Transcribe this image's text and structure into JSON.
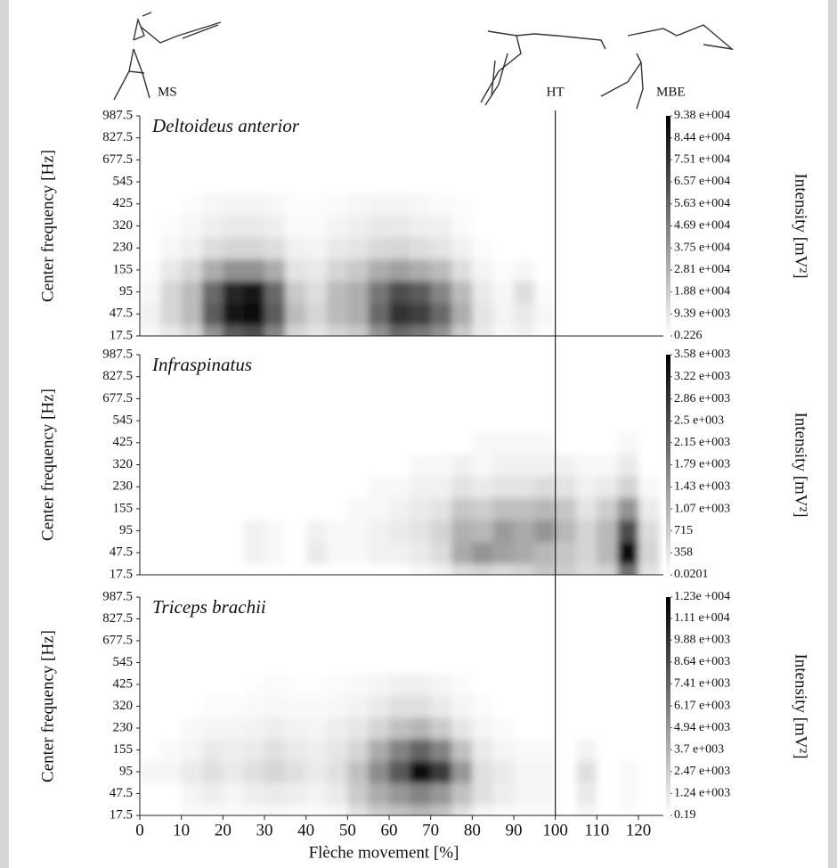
{
  "events": [
    {
      "label": "MS",
      "x": 0
    },
    {
      "label": "HT",
      "x": 100,
      "line": true
    },
    {
      "label": "MBE",
      "x": 120
    }
  ],
  "chart_data": [
    {
      "type": "heatmap",
      "title": "Deltoideus anterior",
      "ylabel": "Center frequency [Hz]",
      "colorbar_label": "Intensity [mV²]",
      "x": [
        2.5,
        7.5,
        12.5,
        17.5,
        22.5,
        27.5,
        32.5,
        37.5,
        42.5,
        47.5,
        52.5,
        57.5,
        62.5,
        67.5,
        72.5,
        77.5,
        82.5,
        87.5,
        92.5,
        97.5,
        102.5,
        107.5,
        112.5,
        117.5,
        122.5
      ],
      "y": [
        17.5,
        47.5,
        95,
        155,
        230,
        320,
        425,
        545,
        677.5,
        827.5,
        987.5
      ],
      "z": [
        [
          3000,
          8000,
          15000,
          40000,
          60000,
          65000,
          45000,
          15000,
          10000,
          15000,
          20000,
          40000,
          55000,
          50000,
          40000,
          20000,
          8000,
          3000,
          5000,
          2000,
          0,
          0,
          0,
          0,
          0
        ],
        [
          5000,
          15000,
          25000,
          60000,
          85000,
          90000,
          60000,
          25000,
          15000,
          25000,
          30000,
          55000,
          75000,
          70000,
          55000,
          30000,
          10000,
          4000,
          8000,
          3000,
          0,
          0,
          0,
          0,
          0
        ],
        [
          3000,
          15000,
          25000,
          55000,
          80000,
          85000,
          55000,
          20000,
          12000,
          25000,
          30000,
          50000,
          65000,
          60000,
          45000,
          25000,
          8000,
          3000,
          12000,
          2000,
          0,
          0,
          0,
          0,
          0
        ],
        [
          1000,
          8000,
          15000,
          30000,
          40000,
          40000,
          30000,
          10000,
          8000,
          15000,
          20000,
          30000,
          35000,
          30000,
          25000,
          12000,
          4000,
          1000,
          3000,
          0,
          0,
          0,
          0,
          0,
          0
        ],
        [
          0,
          3000,
          6000,
          12000,
          15000,
          15000,
          12000,
          5000,
          4000,
          8000,
          10000,
          14000,
          15000,
          12000,
          10000,
          5000,
          1000,
          0,
          0,
          0,
          0,
          0,
          0,
          0,
          0
        ],
        [
          0,
          1000,
          3000,
          6000,
          8000,
          8000,
          6000,
          2000,
          2000,
          4000,
          6000,
          8000,
          8000,
          6000,
          5000,
          2000,
          0,
          0,
          0,
          0,
          0,
          0,
          0,
          0,
          0
        ],
        [
          0,
          0,
          1000,
          3000,
          4000,
          4000,
          3000,
          1000,
          1000,
          2000,
          3000,
          4000,
          4000,
          3000,
          2000,
          1000,
          0,
          0,
          0,
          0,
          0,
          0,
          0,
          0,
          0
        ],
        [
          0,
          0,
          0,
          0,
          0,
          0,
          0,
          0,
          0,
          0,
          0,
          0,
          0,
          0,
          0,
          0,
          0,
          0,
          0,
          0,
          0,
          0,
          0,
          0,
          0
        ],
        [
          0,
          0,
          0,
          0,
          0,
          0,
          0,
          0,
          0,
          0,
          0,
          0,
          0,
          0,
          0,
          0,
          0,
          0,
          0,
          0,
          0,
          0,
          0,
          0,
          0
        ],
        [
          0,
          0,
          0,
          0,
          0,
          0,
          0,
          0,
          0,
          0,
          0,
          0,
          0,
          0,
          0,
          0,
          0,
          0,
          0,
          0,
          0,
          0,
          0,
          0,
          0
        ],
        [
          0,
          0,
          0,
          0,
          0,
          0,
          0,
          0,
          0,
          0,
          0,
          0,
          0,
          0,
          0,
          0,
          0,
          0,
          0,
          0,
          0,
          0,
          0,
          0,
          0
        ]
      ],
      "xlim": [
        0,
        126
      ],
      "clim": [
        0.226,
        93800
      ],
      "cticks": [
        0.226,
        {
          "value": 9390,
          "label": "9.39 e+003"
        },
        {
          "value": 18800,
          "label": "1.88 e+004"
        },
        {
          "value": 28100,
          "label": "2.81 e+004"
        },
        {
          "value": 37500,
          "label": "3.75 e+004"
        },
        {
          "value": 46900,
          "label": "4.69 e+004"
        },
        {
          "value": 56300,
          "label": "5.63 e+004"
        },
        {
          "value": 65700,
          "label": "6.57 e+004"
        },
        {
          "value": 75100,
          "label": "7.51 e+004"
        },
        {
          "value": 84400,
          "label": "8.44 e+004"
        },
        {
          "value": 93800,
          "label": "9.38 e+004"
        }
      ]
    },
    {
      "type": "heatmap",
      "title": "Infraspinatus",
      "ylabel": "Center frequency [Hz]",
      "colorbar_label": "Intensity [mV²]",
      "x": [
        2.5,
        7.5,
        12.5,
        17.5,
        22.5,
        27.5,
        32.5,
        37.5,
        42.5,
        47.5,
        52.5,
        57.5,
        62.5,
        67.5,
        72.5,
        77.5,
        82.5,
        87.5,
        92.5,
        97.5,
        102.5,
        107.5,
        112.5,
        117.5,
        122.5
      ],
      "y": [
        17.5,
        47.5,
        95,
        155,
        230,
        320,
        425,
        545,
        677.5,
        827.5,
        987.5
      ],
      "z": [
        [
          0,
          0,
          0,
          0,
          0,
          0,
          0,
          0,
          0,
          0,
          0,
          0,
          0,
          100,
          200,
          500,
          600,
          500,
          600,
          800,
          700,
          500,
          600,
          2000,
          400
        ],
        [
          0,
          0,
          0,
          0,
          0,
          200,
          100,
          0,
          300,
          100,
          100,
          200,
          200,
          300,
          500,
          1200,
          1500,
          1300,
          1200,
          1000,
          800,
          600,
          1000,
          3400,
          600
        ],
        [
          0,
          0,
          0,
          0,
          0,
          200,
          100,
          0,
          200,
          100,
          100,
          200,
          300,
          400,
          600,
          1100,
          1000,
          1400,
          1200,
          1500,
          1000,
          600,
          1000,
          2500,
          500
        ],
        [
          0,
          0,
          0,
          0,
          0,
          0,
          0,
          0,
          0,
          0,
          100,
          100,
          200,
          300,
          400,
          800,
          700,
          900,
          900,
          1000,
          800,
          400,
          700,
          1500,
          300
        ],
        [
          0,
          0,
          0,
          0,
          0,
          0,
          0,
          0,
          0,
          0,
          0,
          100,
          100,
          200,
          200,
          400,
          300,
          400,
          400,
          500,
          400,
          200,
          300,
          600,
          100
        ],
        [
          0,
          0,
          0,
          0,
          0,
          0,
          0,
          0,
          0,
          0,
          0,
          0,
          0,
          100,
          100,
          200,
          100,
          200,
          200,
          200,
          200,
          100,
          100,
          300,
          0
        ],
        [
          0,
          0,
          0,
          0,
          0,
          0,
          0,
          0,
          0,
          0,
          0,
          0,
          0,
          0,
          0,
          0,
          100,
          100,
          100,
          100,
          0,
          0,
          0,
          100,
          0
        ],
        [
          0,
          0,
          0,
          0,
          0,
          0,
          0,
          0,
          0,
          0,
          0,
          0,
          0,
          0,
          0,
          0,
          0,
          0,
          0,
          0,
          0,
          0,
          0,
          0,
          0
        ],
        [
          0,
          0,
          0,
          0,
          0,
          0,
          0,
          0,
          0,
          0,
          0,
          0,
          0,
          0,
          0,
          0,
          0,
          0,
          0,
          0,
          0,
          0,
          0,
          0,
          0
        ],
        [
          0,
          0,
          0,
          0,
          0,
          0,
          0,
          0,
          0,
          0,
          0,
          0,
          0,
          0,
          0,
          0,
          0,
          0,
          0,
          0,
          0,
          0,
          0,
          0,
          0
        ],
        [
          0,
          0,
          0,
          0,
          0,
          0,
          0,
          0,
          0,
          0,
          0,
          0,
          0,
          0,
          0,
          0,
          0,
          0,
          0,
          0,
          0,
          0,
          0,
          0,
          0
        ]
      ],
      "xlim": [
        0,
        126
      ],
      "clim": [
        0.0201,
        3580
      ],
      "cticks": [
        0.0201,
        358,
        715,
        {
          "value": 1070,
          "label": "1.07 e+003"
        },
        {
          "value": 1430,
          "label": "1.43 e+003"
        },
        {
          "value": 1790,
          "label": "1.79 e+003"
        },
        {
          "value": 2150,
          "label": "2.15 e+003"
        },
        {
          "value": 2500,
          "label": "2.5 e+003"
        },
        {
          "value": 2860,
          "label": "2.86 e+003"
        },
        {
          "value": 3220,
          "label": "3.22 e+003"
        },
        {
          "value": 3580,
          "label": "3.58 e+003"
        }
      ]
    },
    {
      "type": "heatmap",
      "title": "Triceps brachii",
      "ylabel": "Center frequency [Hz]",
      "colorbar_label": "Intensity [mV²]",
      "xlabel": "Flèche movement [%]",
      "x": [
        2.5,
        7.5,
        12.5,
        17.5,
        22.5,
        27.5,
        32.5,
        37.5,
        42.5,
        47.5,
        52.5,
        57.5,
        62.5,
        67.5,
        72.5,
        77.5,
        82.5,
        87.5,
        92.5,
        97.5,
        102.5,
        107.5,
        112.5,
        117.5,
        122.5
      ],
      "y": [
        17.5,
        47.5,
        95,
        155,
        230,
        320,
        425,
        545,
        677.5,
        827.5,
        987.5
      ],
      "z": [
        [
          0,
          0,
          200,
          300,
          200,
          300,
          400,
          300,
          200,
          400,
          1500,
          2500,
          3000,
          3500,
          3000,
          1500,
          500,
          300,
          200,
          200,
          0,
          400,
          0,
          100,
          0
        ],
        [
          0,
          0,
          500,
          800,
          500,
          800,
          1000,
          800,
          600,
          1000,
          2500,
          4000,
          5000,
          6000,
          5000,
          3000,
          1500,
          800,
          500,
          500,
          0,
          1000,
          0,
          300,
          0
        ],
        [
          500,
          500,
          1000,
          1500,
          1000,
          1500,
          2000,
          1500,
          1000,
          1500,
          3000,
          5500,
          8000,
          11500,
          9500,
          5000,
          1500,
          1000,
          500,
          500,
          0,
          1500,
          0,
          300,
          0
        ],
        [
          0,
          300,
          500,
          1000,
          800,
          1000,
          1500,
          1000,
          800,
          1200,
          2000,
          4000,
          6000,
          7500,
          6000,
          3000,
          1000,
          500,
          300,
          300,
          0,
          600,
          0,
          0,
          0
        ],
        [
          0,
          0,
          300,
          500,
          500,
          600,
          800,
          600,
          500,
          800,
          1200,
          2000,
          3000,
          3500,
          2500,
          1200,
          500,
          200,
          0,
          0,
          0,
          0,
          0,
          0,
          0
        ],
        [
          0,
          0,
          0,
          200,
          200,
          300,
          400,
          300,
          300,
          400,
          600,
          1000,
          1500,
          1500,
          1000,
          500,
          200,
          0,
          0,
          0,
          0,
          0,
          0,
          0,
          0
        ],
        [
          0,
          0,
          0,
          0,
          0,
          100,
          200,
          100,
          100,
          200,
          300,
          500,
          700,
          700,
          500,
          200,
          0,
          0,
          0,
          0,
          0,
          0,
          0,
          0,
          0
        ],
        [
          0,
          0,
          0,
          0,
          0,
          0,
          0,
          0,
          0,
          0,
          0,
          0,
          0,
          0,
          0,
          0,
          0,
          0,
          0,
          0,
          0,
          0,
          0,
          0,
          0
        ],
        [
          0,
          0,
          0,
          0,
          0,
          0,
          0,
          0,
          0,
          0,
          0,
          0,
          0,
          0,
          0,
          0,
          0,
          0,
          0,
          0,
          0,
          0,
          0,
          0,
          0
        ],
        [
          0,
          0,
          0,
          0,
          0,
          0,
          0,
          0,
          0,
          0,
          0,
          0,
          0,
          0,
          0,
          0,
          0,
          0,
          0,
          0,
          0,
          0,
          0,
          0,
          0
        ],
        [
          0,
          0,
          0,
          0,
          0,
          0,
          0,
          0,
          0,
          0,
          0,
          0,
          0,
          0,
          0,
          0,
          0,
          0,
          0,
          0,
          0,
          0,
          0,
          0,
          0
        ]
      ],
      "xlim": [
        0,
        126
      ],
      "xticks": [
        0,
        10,
        20,
        30,
        40,
        50,
        60,
        70,
        80,
        90,
        100,
        110,
        120
      ],
      "clim": [
        0.19,
        12300
      ],
      "cticks": [
        0.19,
        {
          "value": 1240,
          "label": "1.24 e+003"
        },
        {
          "value": 2470,
          "label": "2.47 e+003"
        },
        {
          "value": 3700,
          "label": "3.7 e+003"
        },
        {
          "value": 4940,
          "label": "4.94 e+003"
        },
        {
          "value": 6170,
          "label": "6.17 e+003"
        },
        {
          "value": 7410,
          "label": "7.41 e+003"
        },
        {
          "value": 8640,
          "label": "8.64 e+003"
        },
        {
          "value": 9880,
          "label": "9.88 e+003"
        },
        {
          "value": 11100,
          "label": "1.11 e+004"
        },
        {
          "value": 12300,
          "label": "1.23e +004"
        }
      ]
    }
  ]
}
